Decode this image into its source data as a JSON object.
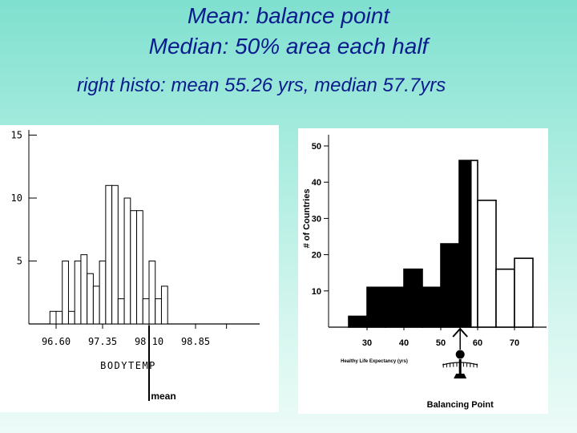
{
  "slide": {
    "title_line1": "Mean: balance point",
    "title_line2": "Median: 50% area each half",
    "subtitle": "right histo: mean 55.26 yrs, median 57.7yrs"
  },
  "colors": {
    "title_text": "#0b1a8c",
    "background_top": "#7fe0cf",
    "background_bottom": "#ecfbf7",
    "bar_fill_dark": "#000000",
    "bar_fill_light": "#ffffff"
  },
  "chart_data": [
    {
      "type": "bar",
      "subtype": "histogram",
      "xlabel": "BODYTEMP",
      "ylabel": "",
      "xticks": [
        "96.60",
        "97.35",
        "98.10",
        "98.85"
      ],
      "xtick_values": [
        96.6,
        97.35,
        98.1,
        98.85
      ],
      "yticks": [
        "5",
        "10",
        "15"
      ],
      "ytick_values": [
        5,
        10,
        15
      ],
      "ylim": [
        0,
        15
      ],
      "bin_width": 0.1,
      "bins": [
        {
          "x": 96.55,
          "count": 1
        },
        {
          "x": 96.65,
          "count": 1
        },
        {
          "x": 96.75,
          "count": 5
        },
        {
          "x": 96.85,
          "count": 1
        },
        {
          "x": 96.95,
          "count": 5
        },
        {
          "x": 97.05,
          "count": 5.5
        },
        {
          "x": 97.15,
          "count": 4
        },
        {
          "x": 97.25,
          "count": 3
        },
        {
          "x": 97.35,
          "count": 5
        },
        {
          "x": 97.45,
          "count": 11
        },
        {
          "x": 97.55,
          "count": 11
        },
        {
          "x": 97.65,
          "count": 2
        },
        {
          "x": 97.75,
          "count": 10
        },
        {
          "x": 97.85,
          "count": 9
        },
        {
          "x": 97.95,
          "count": 9
        },
        {
          "x": 98.05,
          "count": 2
        },
        {
          "x": 98.15,
          "count": 5
        },
        {
          "x": 98.25,
          "count": 2
        },
        {
          "x": 98.35,
          "count": 3
        },
        {
          "x": 98.45,
          "count": 0
        },
        {
          "x": 98.55,
          "count": 0
        }
      ],
      "annotation": {
        "text": "mean",
        "x": 98.1
      }
    },
    {
      "type": "bar",
      "subtype": "histogram",
      "xlabel": "Healthy Life Expectancy (yrs)",
      "ylabel": "# of Countries",
      "xticks": [
        "30",
        "40",
        "50",
        "60",
        "70"
      ],
      "xtick_values": [
        30,
        40,
        50,
        60,
        70
      ],
      "yticks": [
        "10",
        "20",
        "30",
        "40",
        "50"
      ],
      "ytick_values": [
        10,
        20,
        30,
        40,
        50
      ],
      "ylim": [
        0,
        50
      ],
      "bin_width": 5,
      "bins": [
        {
          "x": 27.5,
          "count": 3,
          "side": "below"
        },
        {
          "x": 32.5,
          "count": 11,
          "side": "below"
        },
        {
          "x": 37.5,
          "count": 11,
          "side": "below"
        },
        {
          "x": 42.5,
          "count": 16,
          "side": "below"
        },
        {
          "x": 47.5,
          "count": 11,
          "side": "below"
        },
        {
          "x": 52.5,
          "count": 23,
          "side": "below"
        },
        {
          "x": 57.5,
          "count": 46,
          "side": "below"
        },
        {
          "x": 60,
          "count": 46,
          "side": "above"
        },
        {
          "x": 62.5,
          "count": 35,
          "side": "above"
        },
        {
          "x": 67.5,
          "count": 16,
          "side": "above"
        },
        {
          "x": 72.5,
          "count": 19,
          "side": "above"
        }
      ],
      "annotation": {
        "text": "Balancing Point",
        "x": 55.26
      }
    }
  ]
}
